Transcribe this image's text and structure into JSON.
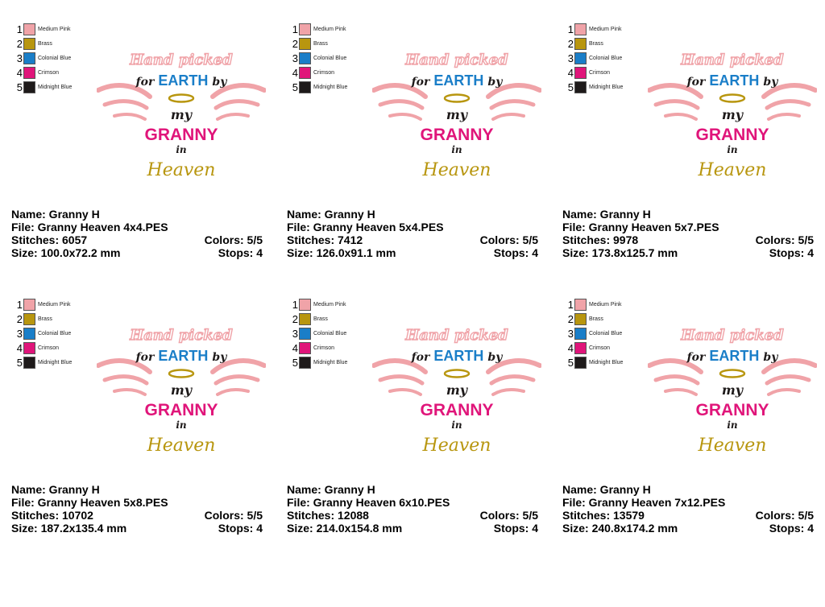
{
  "palette": [
    {
      "num": "1",
      "name": "Medium Pink",
      "color": "#f0a3a8"
    },
    {
      "num": "2",
      "name": "Brass",
      "color": "#b8960f"
    },
    {
      "num": "3",
      "name": "Colonial Blue",
      "color": "#1a7ec8"
    },
    {
      "num": "4",
      "name": "Crimson",
      "color": "#e0157a"
    },
    {
      "num": "5",
      "name": "Midnight Blue",
      "color": "#1e1a1a"
    }
  ],
  "design_text": {
    "line1": "Hand picked",
    "line2a": "for",
    "line2b": "EARTH",
    "line2c": "by",
    "line3": "my",
    "line4": "GRANNY",
    "line5": "in",
    "line6": "Heaven"
  },
  "panels": [
    {
      "name": "Name: Granny H",
      "file": "File: Granny Heaven 4x4.PES",
      "stitches": "Stitches: 6057",
      "colors": "Colors: 5/5",
      "size": "Size: 100.0x72.2 mm",
      "stops": "Stops: 4"
    },
    {
      "name": "Name: Granny H",
      "file": "File: Granny Heaven 5x4.PES",
      "stitches": "Stitches: 7412",
      "colors": "Colors: 5/5",
      "size": "Size: 126.0x91.1 mm",
      "stops": "Stops: 4"
    },
    {
      "name": "Name: Granny H",
      "file": "File: Granny Heaven 5x7.PES",
      "stitches": "Stitches: 9978",
      "colors": "Colors: 5/5",
      "size": "Size: 173.8x125.7 mm",
      "stops": "Stops: 4"
    },
    {
      "name": "Name: Granny H",
      "file": "File: Granny Heaven 5x8.PES",
      "stitches": "Stitches: 10702",
      "colors": "Colors: 5/5",
      "size": "Size: 187.2x135.4 mm",
      "stops": "Stops: 4"
    },
    {
      "name": "Name: Granny H",
      "file": "File: Granny Heaven 6x10.PES",
      "stitches": "Stitches: 12088",
      "colors": "Colors: 5/5",
      "size": "Size: 214.0x154.8 mm",
      "stops": "Stops: 4"
    },
    {
      "name": "Name: Granny H",
      "file": "File: Granny Heaven 7x12.PES",
      "stitches": "Stitches: 13579",
      "colors": "Colors: 5/5",
      "size": "Size: 240.8x174.2 mm",
      "stops": "Stops: 4"
    }
  ]
}
